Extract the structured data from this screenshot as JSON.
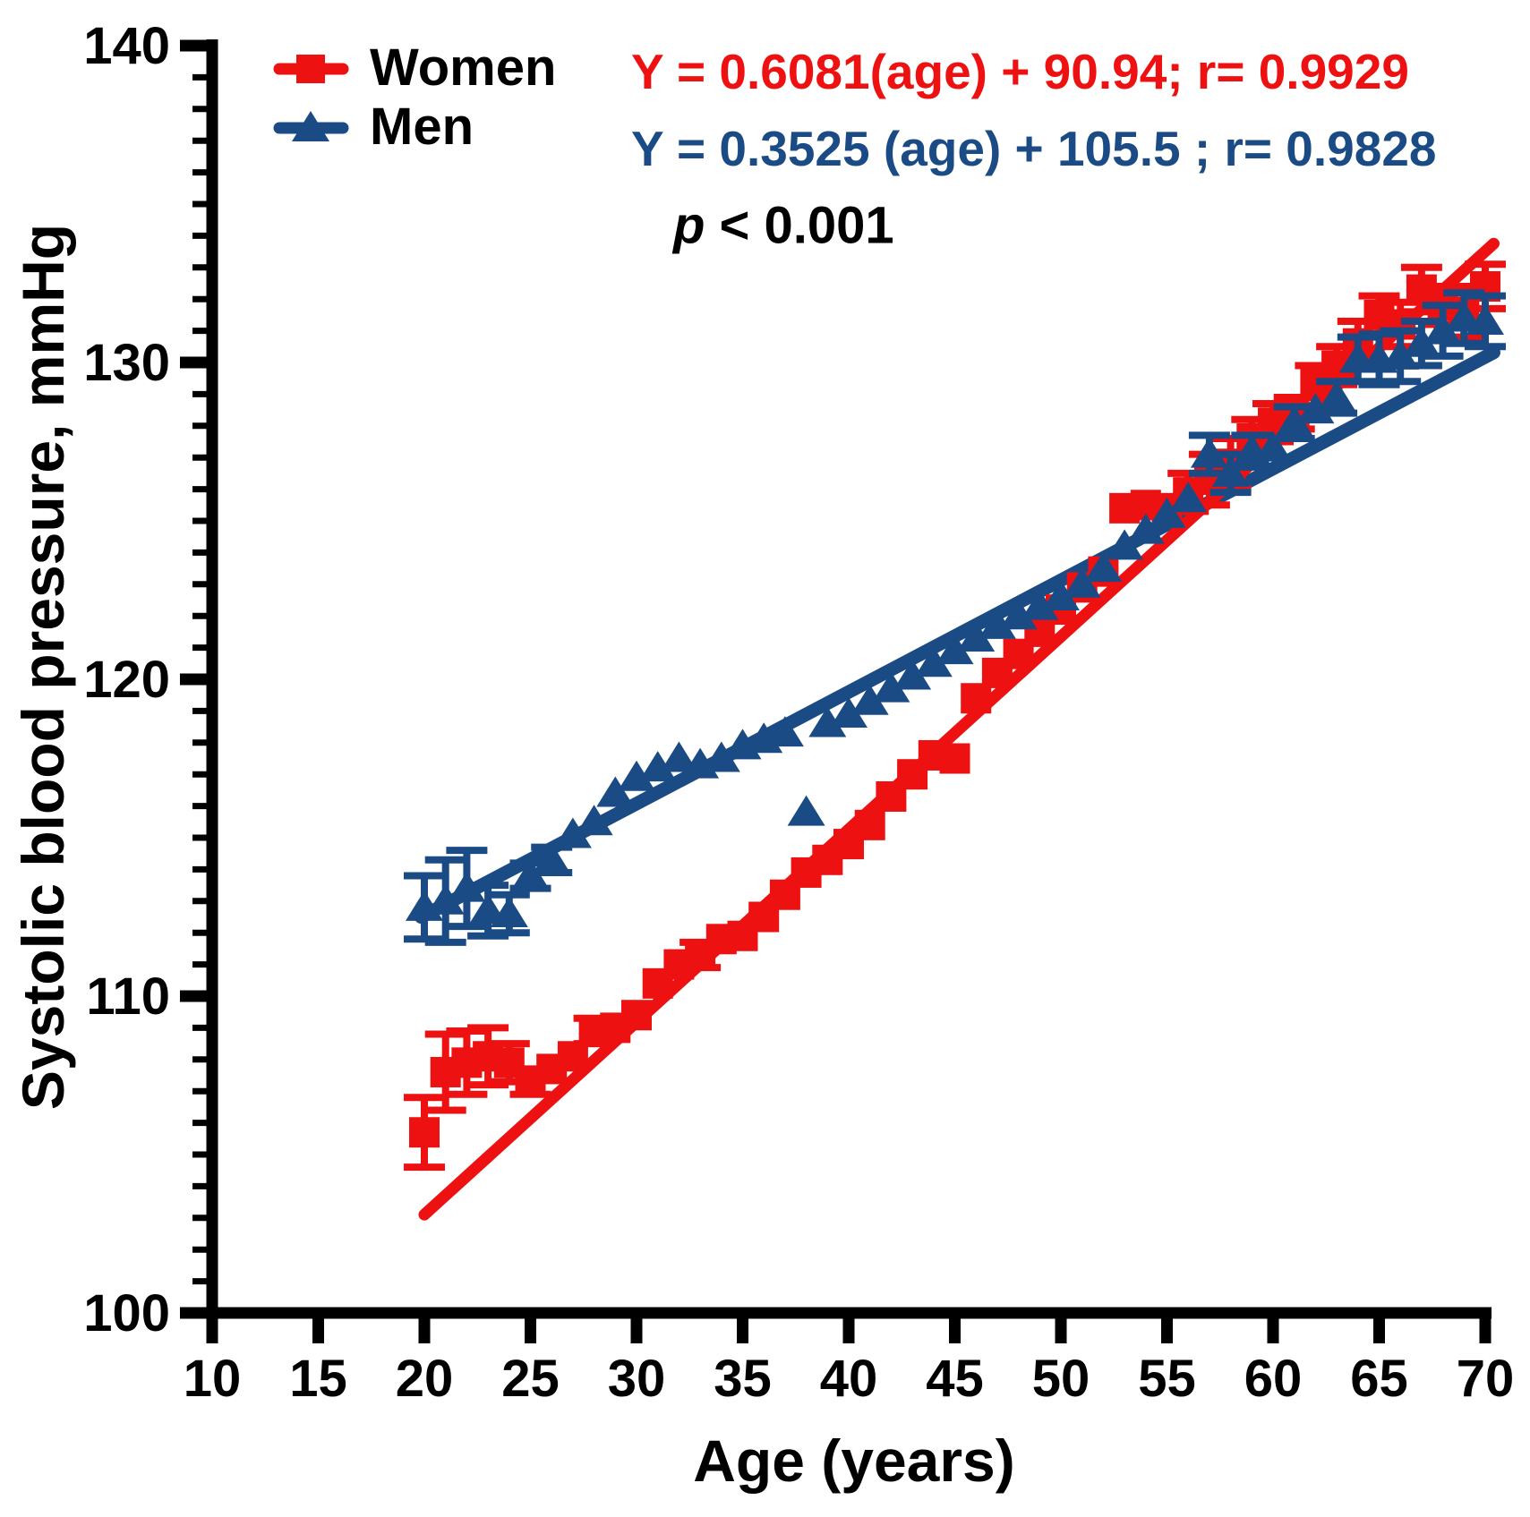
{
  "figure": {
    "legend": {
      "women_label": "Women",
      "men_label": "Men"
    },
    "annotations": {
      "women_equation": "Y = 0.6081(age) + 90.94; r= 0.9929",
      "men_equation": "Y = 0.3525 (age) + 105.5 ; r= 0.9828",
      "p_symbol": "p",
      "p_rest": " < 0.001"
    },
    "axes": {
      "x_title": "Age (years)",
      "y_title": "Systolic blood pressure, mmHg"
    }
  },
  "chart_data": {
    "type": "scatter",
    "title": "",
    "xlabel": "Age (years)",
    "ylabel": "Systolic blood pressure, mmHg",
    "xlim": [
      10,
      70
    ],
    "ylim": [
      100,
      140
    ],
    "x_ticks": [
      10,
      15,
      20,
      25,
      30,
      35,
      40,
      45,
      50,
      55,
      60,
      65,
      70
    ],
    "y_ticks_major": [
      100,
      110,
      120,
      130,
      140
    ],
    "y_minor_tick_step": 1,
    "grid": false,
    "legend_position": "top-left-inside",
    "p_value": "p < 0.001",
    "x": [
      20,
      21,
      22,
      23,
      24,
      25,
      26,
      27,
      28,
      29,
      30,
      31,
      32,
      33,
      34,
      35,
      36,
      37,
      38,
      39,
      40,
      41,
      42,
      43,
      44,
      45,
      46,
      47,
      48,
      49,
      50,
      51,
      52,
      53,
      54,
      55,
      56,
      57,
      58,
      59,
      60,
      61,
      62,
      63,
      64,
      65,
      66,
      67,
      68,
      69,
      70
    ],
    "series": [
      {
        "name": "Women",
        "color": "#EE1111",
        "marker": "square",
        "regression": {
          "label": "Y = 0.6081(age) + 90.94; r= 0.9929",
          "slope": 0.6081,
          "intercept": 90.94,
          "r": 0.9929
        },
        "values": [
          105.7,
          107.6,
          107.9,
          108.1,
          107.9,
          107.3,
          107.7,
          108.1,
          108.9,
          109.0,
          109.4,
          110.4,
          111.0,
          111.3,
          111.8,
          111.9,
          112.5,
          113.2,
          113.9,
          114.3,
          114.8,
          115.4,
          116.3,
          117.0,
          117.6,
          117.5,
          119.4,
          120.2,
          120.8,
          121.5,
          122.2,
          122.9,
          123.4,
          125.4,
          125.5,
          125.4,
          125.9,
          126.3,
          126.8,
          127.6,
          128.1,
          128.4,
          129.4,
          129.9,
          130.6,
          131.5,
          131.2,
          132.3,
          131.8,
          131.6,
          132.4
        ],
        "errors": [
          1.1,
          1.2,
          1.0,
          0.9,
          0.6,
          0.4,
          0,
          0,
          0.4,
          0,
          0,
          0,
          0,
          0.4,
          0,
          0,
          0,
          0,
          0,
          0,
          0,
          0,
          0,
          0,
          0,
          0,
          0,
          0,
          0,
          0,
          0,
          0,
          0,
          0,
          0,
          0,
          0.6,
          0.8,
          0.8,
          0.6,
          0.6,
          0.5,
          0.5,
          0.6,
          0.7,
          0.6,
          0.7,
          0.7,
          0.6,
          0.8,
          0.7
        ]
      },
      {
        "name": "Men",
        "color": "#1B4B85",
        "marker": "triangle",
        "regression": {
          "label": "Y = 0.3525 (age) + 105.5 ; r= 0.9828",
          "slope": 0.3525,
          "intercept": 105.5,
          "r": 0.9828
        },
        "values": [
          112.8,
          113.0,
          113.4,
          112.7,
          112.6,
          113.8,
          114.3,
          115.1,
          115.5,
          116.4,
          116.9,
          117.2,
          117.5,
          117.3,
          117.5,
          117.9,
          118.1,
          118.3,
          115.8,
          118.6,
          118.9,
          119.3,
          119.7,
          120.1,
          120.5,
          120.9,
          121.3,
          121.7,
          122.0,
          122.3,
          122.6,
          123.0,
          123.5,
          124.2,
          124.7,
          125.2,
          125.7,
          127.1,
          126.5,
          127.2,
          127.3,
          128.1,
          128.5,
          128.9,
          130.1,
          130.1,
          130.2,
          130.6,
          131.0,
          131.4,
          131.3
        ],
        "errors": [
          1.0,
          1.3,
          1.2,
          0.8,
          0.6,
          0.4,
          0.4,
          0,
          0,
          0,
          0,
          0,
          0,
          0,
          0,
          0,
          0,
          0,
          0,
          0,
          0,
          0,
          0,
          0,
          0,
          0,
          0,
          0,
          0,
          0,
          0,
          0,
          0,
          0,
          0,
          0,
          0,
          0.6,
          0.6,
          0.5,
          0,
          0.5,
          0,
          0.5,
          0.7,
          0.8,
          0.8,
          0.7,
          0.8,
          0.8,
          0.8
        ]
      }
    ]
  }
}
